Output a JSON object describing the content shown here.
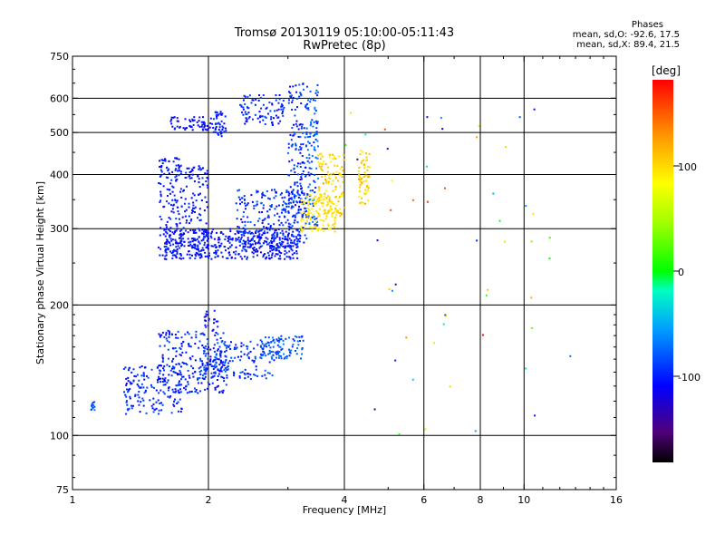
{
  "header": {
    "title_line1": "Tromsø 20130119 05:10:00-05:11:43",
    "title_line2": "RwPretec (8p)"
  },
  "stats": {
    "heading": "Phases",
    "line1": "mean, sd,O: -92.6, 17.5",
    "line2": "mean, sd,X:  89.4, 21.5"
  },
  "colorbar": {
    "label": "[deg]",
    "ticks": [
      "100",
      "0",
      "-100"
    ]
  },
  "chart_data": {
    "type": "scatter",
    "xlabel": "Frequency [MHz]",
    "ylabel": "Stationary phase Virtual Height [km]",
    "xscale": "log",
    "yscale": "log",
    "xlim": [
      1,
      16
    ],
    "ylim": [
      75,
      750
    ],
    "xticks": [
      "1",
      "2",
      "4",
      "6",
      "8",
      "10",
      "16"
    ],
    "xtick_values": [
      1,
      2,
      4,
      6,
      8,
      10,
      16
    ],
    "yticks": [
      "75",
      "100",
      "200",
      "300",
      "400",
      "500",
      "600",
      "750"
    ],
    "ytick_values": [
      75,
      100,
      200,
      300,
      400,
      500,
      600,
      750
    ],
    "grid_x": [
      2,
      4,
      6,
      8,
      10
    ],
    "grid_y": [
      100,
      200,
      300,
      400,
      500,
      600
    ],
    "color_value": "phase (deg)",
    "color_range": [
      -180,
      180
    ],
    "clusters": [
      {
        "x": [
          1.6,
          3.2
        ],
        "y": [
          255,
          300
        ],
        "n": 450,
        "phase": [
          -120,
          -90
        ]
      },
      {
        "x": [
          2.3,
          3.3
        ],
        "y": [
          270,
          370
        ],
        "n": 250,
        "phase": [
          -115,
          -70
        ]
      },
      {
        "x": [
          1.55,
          1.75
        ],
        "y": [
          260,
          440
        ],
        "n": 150,
        "phase": [
          -110,
          -90
        ]
      },
      {
        "x": [
          1.75,
          2.0
        ],
        "y": [
          260,
          420
        ],
        "n": 120,
        "phase": [
          -110,
          -90
        ]
      },
      {
        "x": [
          1.65,
          2.05
        ],
        "y": [
          505,
          545
        ],
        "n": 60,
        "phase": [
          -115,
          -95
        ]
      },
      {
        "x": [
          2.05,
          2.2
        ],
        "y": [
          490,
          560
        ],
        "n": 45,
        "phase": [
          -110,
          -90
        ]
      },
      {
        "x": [
          2.35,
          2.95
        ],
        "y": [
          520,
          610
        ],
        "n": 90,
        "phase": [
          -115,
          -80
        ]
      },
      {
        "x": [
          3.0,
          3.3
        ],
        "y": [
          320,
          650
        ],
        "n": 150,
        "phase": [
          -115,
          -70
        ]
      },
      {
        "x": [
          3.3,
          3.5
        ],
        "y": [
          300,
          650
        ],
        "n": 110,
        "phase": [
          -100,
          -60
        ]
      },
      {
        "x": [
          3.2,
          3.85
        ],
        "y": [
          295,
          360
        ],
        "n": 110,
        "phase": [
          80,
          105
        ]
      },
      {
        "x": [
          3.5,
          4.0
        ],
        "y": [
          320,
          450
        ],
        "n": 120,
        "phase": [
          80,
          120
        ]
      },
      {
        "x": [
          4.3,
          4.55
        ],
        "y": [
          340,
          460
        ],
        "n": 60,
        "phase": [
          85,
          120
        ]
      },
      {
        "x": [
          1.1,
          1.12
        ],
        "y": [
          112,
          120
        ],
        "n": 12,
        "phase": [
          -90,
          -60
        ]
      },
      {
        "x": [
          1.3,
          1.75
        ],
        "y": [
          112,
          145
        ],
        "n": 160,
        "phase": [
          -110,
          -80
        ]
      },
      {
        "x": [
          1.55,
          2.2
        ],
        "y": [
          125,
          175
        ],
        "n": 230,
        "phase": [
          -115,
          -80
        ]
      },
      {
        "x": [
          1.9,
          2.8
        ],
        "y": [
          135,
          165
        ],
        "n": 170,
        "phase": [
          -110,
          -70
        ]
      },
      {
        "x": [
          2.6,
          3.25
        ],
        "y": [
          150,
          170
        ],
        "n": 90,
        "phase": [
          -100,
          -60
        ]
      },
      {
        "x": [
          1.95,
          2.1
        ],
        "y": [
          175,
          195
        ],
        "n": 20,
        "phase": [
          -110,
          -90
        ]
      },
      {
        "x": [
          4.0,
          13.0
        ],
        "y": [
          100,
          600
        ],
        "n": 55,
        "phase": [
          -180,
          180
        ]
      }
    ]
  }
}
